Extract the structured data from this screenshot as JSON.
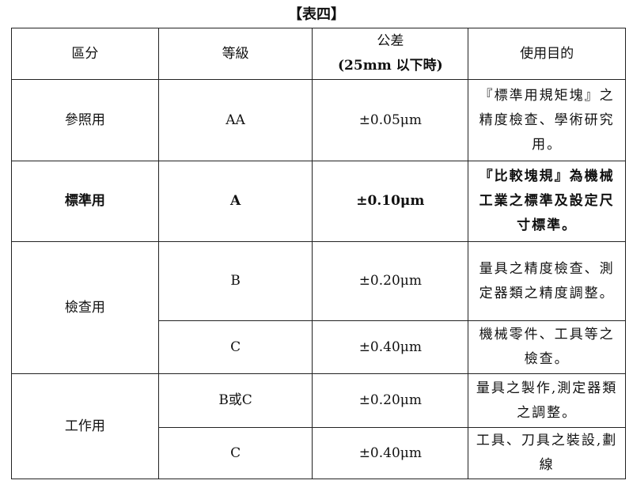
{
  "title": "【表四】",
  "headers": [
    "區分",
    "等級",
    "公差\n(25mm 以下時)",
    "使用目的"
  ],
  "header_tolerance": {
    "line1": "公差",
    "line2": "(25mm 以下時)"
  },
  "rows": [
    {
      "category": "參照用",
      "grade": "AA",
      "tolerance": "±0.05μm",
      "purpose": "『標準用規矩塊』之精度檢查、學術研究用。"
    },
    {
      "category": "標準用",
      "grade": "A",
      "tolerance": "±0.10μm",
      "purpose": "『比較塊規』為機械工業之標準及設定尺寸標準。"
    },
    {
      "category": "檢查用",
      "grade": "B",
      "tolerance": "±0.20μm",
      "purpose": "量具之精度檢查、測定器類之精度調整。"
    },
    {
      "category": "",
      "grade": "C",
      "tolerance": "±0.40μm",
      "purpose": "機械零件、工具等之檢查。"
    },
    {
      "category": "工作用",
      "grade": "B或C",
      "tolerance": "±0.20μm",
      "purpose": "量具之製作,測定器類之調整。"
    },
    {
      "category": "",
      "grade": "C",
      "tolerance": "±0.40μm",
      "purpose": "工具、刀具之裝設,劃線"
    }
  ]
}
